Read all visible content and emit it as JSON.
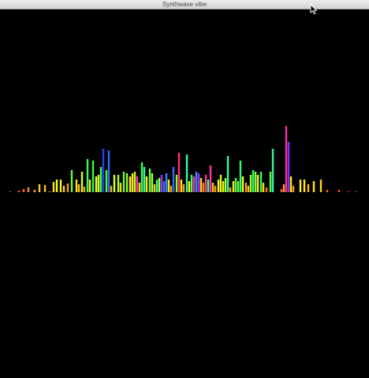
{
  "window": {
    "title": "Synthwave vibe"
  },
  "cursor": {
    "icon": "arrow-cursor-icon"
  },
  "visualizer": {
    "type": "audio-spectrum-bars",
    "palette": [
      "#ff2a2a",
      "#ff7a1a",
      "#ffcf1a",
      "#ffff33",
      "#9cff3a",
      "#3dff5c",
      "#2fffa6",
      "#2e8cff",
      "#3a2bff",
      "#a033ff",
      "#ff2fa8"
    ],
    "bars": [
      {
        "x": 13,
        "h": 1,
        "c": "#ff3b2a"
      },
      {
        "x": 24,
        "h": 2,
        "c": "#ff5a1f"
      },
      {
        "x": 30,
        "h": 4,
        "c": "#ff6a1a"
      },
      {
        "x": 36,
        "h": 6,
        "c": "#ff8a1a"
      },
      {
        "x": 44,
        "h": 3,
        "c": "#ffa21a"
      },
      {
        "x": 50,
        "h": 10,
        "c": "#ffd21a"
      },
      {
        "x": 57,
        "h": 9,
        "c": "#ffbe1a"
      },
      {
        "x": 63,
        "h": 1,
        "c": "#ffa01a"
      },
      {
        "x": 68,
        "h": 13,
        "c": "#ffe41a"
      },
      {
        "x": 72,
        "h": 16,
        "c": "#ffff33"
      },
      {
        "x": 77,
        "h": 16,
        "c": "#ffef2a"
      },
      {
        "x": 81,
        "h": 8,
        "c": "#ffd11a"
      },
      {
        "x": 86,
        "h": 11,
        "c": "#ff9a1a"
      },
      {
        "x": 91,
        "h": 28,
        "c": "#6aff3a"
      },
      {
        "x": 97,
        "h": 16,
        "c": "#ffe01a"
      },
      {
        "x": 100,
        "h": 10,
        "c": "#ffc51a"
      },
      {
        "x": 104,
        "h": 26,
        "c": "#d8ff2a"
      },
      {
        "x": 107,
        "h": 7,
        "c": "#ff9f1a"
      },
      {
        "x": 111,
        "h": 42,
        "c": "#2fff6a"
      },
      {
        "x": 114,
        "h": 16,
        "c": "#ffe81a"
      },
      {
        "x": 118,
        "h": 40,
        "c": "#2eff5a"
      },
      {
        "x": 122,
        "h": 20,
        "c": "#eeff2a"
      },
      {
        "x": 125,
        "h": 22,
        "c": "#cfff2a"
      },
      {
        "x": 128,
        "h": 32,
        "c": "#3dff5c"
      },
      {
        "x": 131,
        "h": 55,
        "c": "#2a3aff"
      },
      {
        "x": 135,
        "h": 28,
        "c": "#44ff3a"
      },
      {
        "x": 138,
        "h": 53,
        "c": "#2f6cff"
      },
      {
        "x": 141,
        "h": 8,
        "c": "#ffb21a"
      },
      {
        "x": 145,
        "h": 22,
        "c": "#e0ff2a"
      },
      {
        "x": 150,
        "h": 22,
        "c": "#9cff3a"
      },
      {
        "x": 153,
        "h": 12,
        "c": "#ffd01a"
      },
      {
        "x": 157,
        "h": 26,
        "c": "#6aff3a"
      },
      {
        "x": 161,
        "h": 24,
        "c": "#8aff3a"
      },
      {
        "x": 165,
        "h": 20,
        "c": "#ffea1a"
      },
      {
        "x": 168,
        "h": 24,
        "c": "#ffe21a"
      },
      {
        "x": 171,
        "h": 26,
        "c": "#b8ff2a"
      },
      {
        "x": 174,
        "h": 20,
        "c": "#ff33a8"
      },
      {
        "x": 177,
        "h": 12,
        "c": "#ffd81a"
      },
      {
        "x": 180,
        "h": 38,
        "c": "#3dff5c"
      },
      {
        "x": 183,
        "h": 32,
        "c": "#2eff8a"
      },
      {
        "x": 186,
        "h": 20,
        "c": "#ffec1a"
      },
      {
        "x": 190,
        "h": 30,
        "c": "#7aff3a"
      },
      {
        "x": 193,
        "h": 24,
        "c": "#9cff3a"
      },
      {
        "x": 196,
        "h": 10,
        "c": "#ffc01a"
      },
      {
        "x": 199,
        "h": 16,
        "c": "#2fffa6"
      },
      {
        "x": 202,
        "h": 18,
        "c": "#b0ff2a"
      },
      {
        "x": 205,
        "h": 22,
        "c": "#a033ff"
      },
      {
        "x": 208,
        "h": 14,
        "c": "#3a6cff"
      },
      {
        "x": 211,
        "h": 24,
        "c": "#2f8cff"
      },
      {
        "x": 214,
        "h": 16,
        "c": "#ffea1a"
      },
      {
        "x": 217,
        "h": 8,
        "c": "#ff9a1a"
      },
      {
        "x": 220,
        "h": 32,
        "c": "#2f6cff"
      },
      {
        "x": 224,
        "h": 22,
        "c": "#8aff3a"
      },
      {
        "x": 227,
        "h": 50,
        "c": "#ff2f7a"
      },
      {
        "x": 230,
        "h": 16,
        "c": "#ffe01a"
      },
      {
        "x": 233,
        "h": 10,
        "c": "#ff9a1a"
      },
      {
        "x": 237,
        "h": 48,
        "c": "#2fffa6"
      },
      {
        "x": 240,
        "h": 14,
        "c": "#ffe51a"
      },
      {
        "x": 243,
        "h": 22,
        "c": "#3dff5c"
      },
      {
        "x": 246,
        "h": 20,
        "c": "#ff2fa8"
      },
      {
        "x": 249,
        "h": 26,
        "c": "#2e8cff"
      },
      {
        "x": 252,
        "h": 24,
        "c": "#a033ff"
      },
      {
        "x": 255,
        "h": 18,
        "c": "#ffd81a"
      },
      {
        "x": 258,
        "h": 12,
        "c": "#ff7a1a"
      },
      {
        "x": 261,
        "h": 22,
        "c": "#ff3a8a"
      },
      {
        "x": 264,
        "h": 16,
        "c": "#2fff9a"
      },
      {
        "x": 267,
        "h": 34,
        "c": "#ff2fa8"
      },
      {
        "x": 270,
        "h": 12,
        "c": "#ffc21a"
      },
      {
        "x": 273,
        "h": 8,
        "c": "#ff9a1a"
      },
      {
        "x": 277,
        "h": 16,
        "c": "#ffef2a"
      },
      {
        "x": 280,
        "h": 22,
        "c": "#d0ff2a"
      },
      {
        "x": 283,
        "h": 14,
        "c": "#ffe21a"
      },
      {
        "x": 286,
        "h": 18,
        "c": "#9cff3a"
      },
      {
        "x": 289,
        "h": 46,
        "c": "#2fff9a"
      },
      {
        "x": 292,
        "h": 6,
        "c": "#ffb01a"
      },
      {
        "x": 296,
        "h": 14,
        "c": "#ffe61a"
      },
      {
        "x": 299,
        "h": 18,
        "c": "#3dff5c"
      },
      {
        "x": 302,
        "h": 14,
        "c": "#6aff3a"
      },
      {
        "x": 305,
        "h": 40,
        "c": "#2fff6a"
      },
      {
        "x": 308,
        "h": 20,
        "c": "#eaff2a"
      },
      {
        "x": 312,
        "h": 12,
        "c": "#ff9a1a"
      },
      {
        "x": 315,
        "h": 8,
        "c": "#ffbe1a"
      },
      {
        "x": 318,
        "h": 22,
        "c": "#9cff3a"
      },
      {
        "x": 321,
        "h": 28,
        "c": "#2fff6a"
      },
      {
        "x": 324,
        "h": 26,
        "c": "#7aff3a"
      },
      {
        "x": 327,
        "h": 22,
        "c": "#ffef2a"
      },
      {
        "x": 331,
        "h": 26,
        "c": "#3dff5c"
      },
      {
        "x": 334,
        "h": 12,
        "c": "#ffd81a"
      },
      {
        "x": 338,
        "h": 6,
        "c": "#ff7a1a"
      },
      {
        "x": 343,
        "h": 26,
        "c": "#5dff3a"
      },
      {
        "x": 346,
        "h": 55,
        "c": "#2fffa6"
      },
      {
        "x": 357,
        "h": 4,
        "c": "#ff6a1a"
      },
      {
        "x": 360,
        "h": 10,
        "c": "#ff9a1a"
      },
      {
        "x": 363,
        "h": 84,
        "c": "#ff2fa8"
      },
      {
        "x": 366,
        "h": 64,
        "c": "#7a33ff"
      },
      {
        "x": 369,
        "h": 20,
        "c": "#ffe81a"
      },
      {
        "x": 372,
        "h": 8,
        "c": "#ff9a1a"
      },
      {
        "x": 381,
        "h": 16,
        "c": "#ffef2a"
      },
      {
        "x": 386,
        "h": 16,
        "c": "#ffe51a"
      },
      {
        "x": 391,
        "h": 10,
        "c": "#ffb81a"
      },
      {
        "x": 398,
        "h": 14,
        "c": "#ffe81a"
      },
      {
        "x": 407,
        "h": 16,
        "c": "#ffd51a"
      },
      {
        "x": 415,
        "h": 3,
        "c": "#ff5a1f"
      },
      {
        "x": 430,
        "h": 3,
        "c": "#ff4a2a"
      },
      {
        "x": 442,
        "h": 1,
        "c": "#ff3a2a"
      },
      {
        "x": 452,
        "h": 1,
        "c": "#ff3a2a"
      }
    ]
  }
}
